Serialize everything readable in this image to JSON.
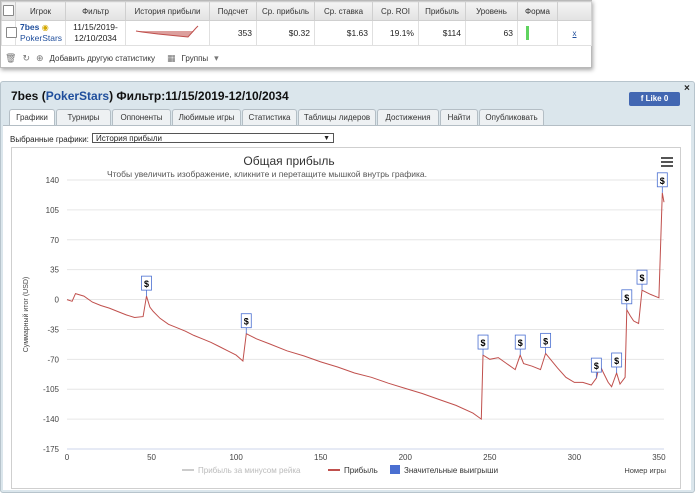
{
  "stats": {
    "columns": [
      "Игрок",
      "Фильтр",
      "История прибыли",
      "Подсчет",
      "Ср. прибыль",
      "Ср. ставка",
      "Ср. ROI",
      "Прибыль",
      "Уровень",
      "Форма"
    ],
    "row": {
      "player": "7bes",
      "room": "PokerStars",
      "filter": "11/15/2019-\n12/10/2034",
      "count": "353",
      "avg_profit": "$0.32",
      "avg_stake": "$1.63",
      "avg_roi": "19.1%",
      "profit": "$114",
      "level": "63",
      "remove": "x"
    },
    "footer": {
      "add_label": "Добавить другую статистику",
      "groups_label": "Группы"
    }
  },
  "panel": {
    "player": "7bes",
    "room": "PokerStars",
    "filter_label": "Фильтр:11/15/2019-12/10/2034",
    "like_label": "Like 0",
    "close_label": "×",
    "tabs": [
      "Графики",
      "Турниры",
      "Оппоненты",
      "Любимые игры",
      "Статистика",
      "Таблицы лидеров",
      "Достижения",
      "Найти",
      "Опубликовать"
    ],
    "active_tab": 0,
    "graph_select_label": "Выбранные графики:",
    "graph_select_value": "История прибыли"
  },
  "chart_data": {
    "type": "line",
    "title": "Общая прибыль",
    "subtitle": "Чтобы увеличить изображение, кликните и перетащите мышкой внутрь графика.",
    "ylabel": "Суммарный итог (USD)",
    "xlabel": "Номер игры",
    "xlim": [
      0,
      353
    ],
    "ylim": [
      -175,
      140
    ],
    "xticks": [
      0,
      50,
      100,
      150,
      200,
      250,
      300,
      350
    ],
    "yticks": [
      140,
      105,
      70,
      35,
      0,
      -35,
      -70,
      -105,
      -140,
      -175
    ],
    "legend": [
      "Прибыль за минусом рейка",
      "Прибыль",
      "Значительные выигрыши"
    ],
    "legend_colors": [
      "#cccccc",
      "#c0504d",
      "#4a6fd1"
    ],
    "line_color": "#c0504d",
    "series": [
      {
        "name": "Прибыль",
        "points": [
          [
            0,
            0
          ],
          [
            3,
            -2
          ],
          [
            5,
            7
          ],
          [
            10,
            4
          ],
          [
            15,
            -3
          ],
          [
            20,
            -7
          ],
          [
            25,
            -10
          ],
          [
            30,
            -14
          ],
          [
            35,
            -18
          ],
          [
            40,
            -21
          ],
          [
            45,
            -20
          ],
          [
            47,
            4
          ],
          [
            49,
            -9
          ],
          [
            51,
            -14
          ],
          [
            55,
            -22
          ],
          [
            60,
            -29
          ],
          [
            65,
            -33
          ],
          [
            70,
            -37
          ],
          [
            75,
            -42
          ],
          [
            80,
            -46
          ],
          [
            85,
            -50
          ],
          [
            90,
            -55
          ],
          [
            95,
            -60
          ],
          [
            100,
            -65
          ],
          [
            104,
            -72
          ],
          [
            106,
            -40
          ],
          [
            108,
            -42
          ],
          [
            112,
            -46
          ],
          [
            120,
            -52
          ],
          [
            130,
            -60
          ],
          [
            140,
            -66
          ],
          [
            150,
            -73
          ],
          [
            160,
            -79
          ],
          [
            170,
            -86
          ],
          [
            180,
            -91
          ],
          [
            190,
            -98
          ],
          [
            200,
            -104
          ],
          [
            210,
            -110
          ],
          [
            220,
            -117
          ],
          [
            230,
            -124
          ],
          [
            240,
            -133
          ],
          [
            245,
            -140
          ],
          [
            246,
            -65
          ],
          [
            250,
            -70
          ],
          [
            255,
            -68
          ],
          [
            260,
            -75
          ],
          [
            265,
            -82
          ],
          [
            268,
            -65
          ],
          [
            270,
            -75
          ],
          [
            275,
            -78
          ],
          [
            280,
            -82
          ],
          [
            283,
            -63
          ],
          [
            285,
            -68
          ],
          [
            290,
            -80
          ],
          [
            295,
            -91
          ],
          [
            300,
            -97
          ],
          [
            305,
            -97
          ],
          [
            310,
            -100
          ],
          [
            313,
            -92
          ],
          [
            315,
            -76
          ],
          [
            317,
            -85
          ],
          [
            320,
            -97
          ],
          [
            322,
            -102
          ],
          [
            325,
            -86
          ],
          [
            327,
            -99
          ],
          [
            330,
            -91
          ],
          [
            331,
            -12
          ],
          [
            333,
            -19
          ],
          [
            335,
            -25
          ],
          [
            338,
            -28
          ],
          [
            340,
            11
          ],
          [
            345,
            6
          ],
          [
            350,
            2
          ],
          [
            352,
            125
          ],
          [
            353,
            114
          ]
        ]
      }
    ],
    "big_wins": [
      [
        47,
        4
      ],
      [
        106,
        -40
      ],
      [
        246,
        -65
      ],
      [
        268,
        -65
      ],
      [
        283,
        -63
      ],
      [
        313,
        -92
      ],
      [
        325,
        -86
      ],
      [
        331,
        -12
      ],
      [
        340,
        11
      ],
      [
        352,
        125
      ]
    ],
    "big_win_label": "$"
  }
}
